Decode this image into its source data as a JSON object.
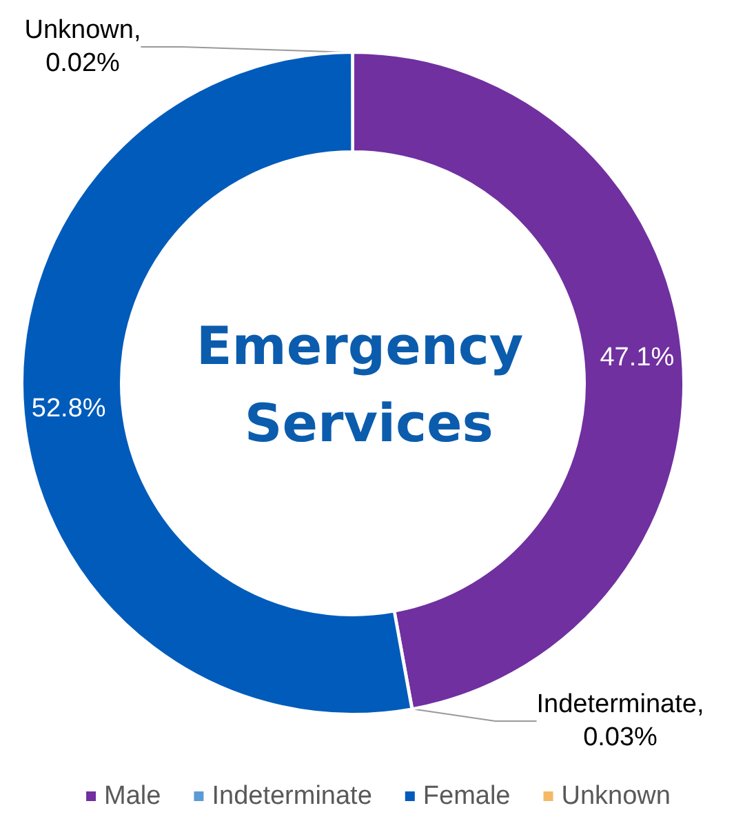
{
  "chart_data": {
    "type": "donut",
    "title": "Emergency Services",
    "categories": [
      "Male",
      "Indeterminate",
      "Female",
      "Unknown"
    ],
    "values": [
      47.1,
      0.03,
      52.8,
      0.02
    ],
    "colors": [
      "#7030a0",
      "#5b9bd5",
      "#005bbb",
      "#f4b965"
    ],
    "value_labels": [
      "47.1%",
      "Indeterminate, 0.03%",
      "52.8%",
      "Unknown, 0.02%"
    ],
    "legend": "bottom"
  }
}
